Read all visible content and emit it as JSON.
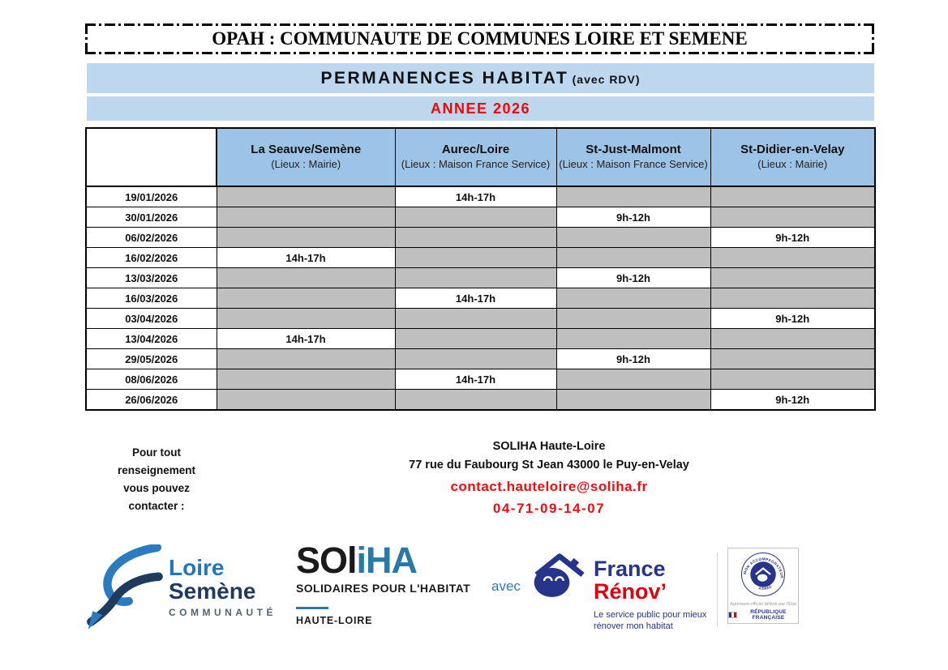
{
  "header": {
    "title": "OPAH : COMMUNAUTE DE COMMUNES LOIRE ET SEMENE",
    "banner_main": "PERMANENCES HABITAT",
    "banner_suffix": "(avec RDV)",
    "banner_year": "ANNEE 2026"
  },
  "schedule": {
    "columns": [
      {
        "name": "La Seauve/Semène",
        "location": "(Lieux : Mairie)"
      },
      {
        "name": "Aurec/Loire",
        "location": "(Lieux : Maison France Service)"
      },
      {
        "name": "St-Just-Malmont",
        "location": "(Lieux : Maison France Service)"
      },
      {
        "name": "St-Didier-en-Velay",
        "location": "(Lieux : Mairie)"
      }
    ],
    "rows": [
      {
        "date": "19/01/2026",
        "cells": [
          "",
          "14h-17h",
          "",
          ""
        ]
      },
      {
        "date": "30/01/2026",
        "cells": [
          "",
          "",
          "9h-12h",
          ""
        ]
      },
      {
        "date": "06/02/2026",
        "cells": [
          "",
          "",
          "",
          "9h-12h"
        ]
      },
      {
        "date": "16/02/2026",
        "cells": [
          "14h-17h",
          "",
          "",
          ""
        ]
      },
      {
        "date": "13/03/2026",
        "cells": [
          "",
          "",
          "9h-12h",
          ""
        ]
      },
      {
        "date": "16/03/2026",
        "cells": [
          "",
          "14h-17h",
          "",
          ""
        ]
      },
      {
        "date": "03/04/2026",
        "cells": [
          "",
          "",
          "",
          "9h-12h"
        ]
      },
      {
        "date": "13/04/2026",
        "cells": [
          "14h-17h",
          "",
          "",
          ""
        ]
      },
      {
        "date": "29/05/2026",
        "cells": [
          "",
          "",
          "9h-12h",
          ""
        ]
      },
      {
        "date": "08/06/2026",
        "cells": [
          "",
          "14h-17h",
          "",
          ""
        ]
      },
      {
        "date": "26/06/2026",
        "cells": [
          "",
          "",
          "",
          "9h-12h"
        ]
      }
    ]
  },
  "contact": {
    "label_lines": [
      "Pour tout",
      "renseignement",
      "vous pouvez",
      "contacter :"
    ],
    "org": "SOLIHA Haute-Loire",
    "address": "77 rue du Faubourg St Jean 43000 le Puy-en-Velay",
    "email": "contact.hauteloire@soliha.fr",
    "phone": "04-71-09-14-07"
  },
  "logos": {
    "loire_semene": {
      "line1": "Loire",
      "line2": "Semène",
      "line3": "COMMUNAUTÉ"
    },
    "soliha": {
      "name_black": "SOl",
      "name_blue": "iHA",
      "tagline": "SOLIDAIRES POUR L'HABITAT",
      "region": "HAUTE-LOIRE"
    },
    "avec": "avec",
    "france_renov": {
      "line1": "France",
      "line2": "Rénov’",
      "tagline": "Le service public pour mieux rénover mon habitat"
    },
    "badge": {
      "arc_top": "MON ACCOMPAGNATEUR RÉNOV’",
      "arc_bottom": "AGRÉÉ",
      "agrement": "Agrément officiel délivré par l’État",
      "republique": "RÉPUBLIQUE FRANÇAISE"
    }
  },
  "colors": {
    "banner_blue": "#BDD7EE",
    "header_blue": "#9DC3E6",
    "cell_gray": "#BFBFBF",
    "accent_red": "#FF0000",
    "soliha_blue": "#2779A7",
    "loire_blue": "#2176BD",
    "semene_navy": "#1E3A5F",
    "renov_navy": "#27348B",
    "renov_red": "#E1000F"
  }
}
